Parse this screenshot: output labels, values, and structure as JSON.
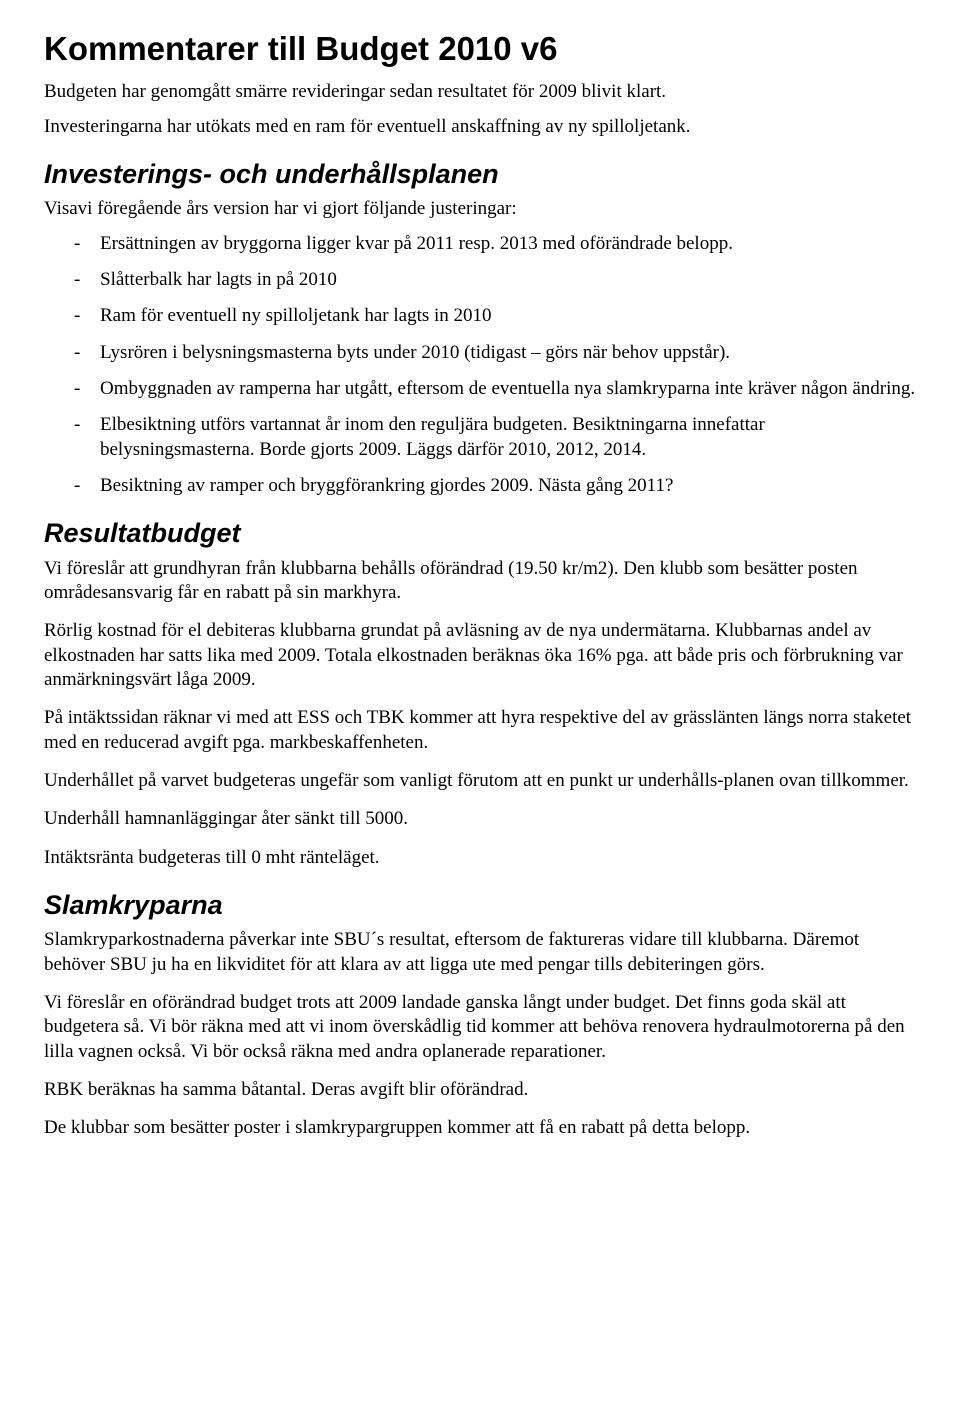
{
  "title": "Kommentarer till Budget 2010 v6",
  "intro": {
    "p1": "Budgeten har genomgått smärre revideringar sedan resultatet för 2009 blivit klart.",
    "p2": "Investeringarna har utökats med en ram för eventuell anskaffning av ny spilloljetank."
  },
  "section1": {
    "heading": "Investerings- och underhållsplanen",
    "lead": "Visavi föregående års version har vi gjort följande justeringar:",
    "items": [
      "Ersättningen av bryggorna ligger kvar på 2011 resp. 2013 med oförändrade belopp.",
      "Slåtterbalk har lagts in på 2010",
      "Ram för eventuell ny spilloljetank har lagts in 2010",
      "Lysrören i belysningsmasterna byts under 2010 (tidigast – görs när behov uppstår).",
      "Ombyggnaden av ramperna har utgått, eftersom de eventuella nya slamkryparna inte kräver någon ändring.",
      "Elbesiktning utförs vartannat år inom den reguljära budgeten. Besiktningarna innefattar belysningsmasterna. Borde gjorts 2009. Läggs därför 2010, 2012, 2014.",
      "Besiktning av ramper och bryggförankring gjordes 2009. Nästa gång 2011?"
    ]
  },
  "section2": {
    "heading": "Resultatbudget",
    "p1": "Vi föreslår att grundhyran från klubbarna behålls oförändrad (19.50 kr/m2). Den klubb som besätter posten områdesansvarig får en rabatt på sin markhyra.",
    "p2": "Rörlig kostnad för el debiteras klubbarna grundat på avläsning av de nya undermätarna. Klubbarnas andel av elkostnaden har satts lika med 2009. Totala elkostnaden beräknas öka 16% pga. att både pris och förbrukning var anmärkningsvärt låga 2009.",
    "p3": "På intäktssidan räknar vi med att ESS och TBK kommer att hyra respektive del av grässlänten längs norra staketet med en reducerad avgift pga. markbeskaffenheten.",
    "p4": "Underhållet på varvet budgeteras ungefär som vanligt förutom att en punkt ur underhålls-planen ovan tillkommer.",
    "p5": "Underhåll hamnanläggingar åter sänkt till 5000.",
    "p6": "Intäktsränta budgeteras till 0 mht ränteläget."
  },
  "section3": {
    "heading": "Slamkryparna",
    "p1": "Slamkryparkostnaderna påverkar inte SBU´s resultat, eftersom de faktureras vidare till klubbarna. Däremot behöver SBU ju ha en likviditet för att klara av att ligga ute med pengar tills debiteringen görs.",
    "p2": "Vi föreslår en oförändrad budget trots att 2009 landade ganska långt under budget. Det finns goda skäl att budgetera så. Vi bör räkna med att vi inom överskådlig tid kommer att behöva renovera hydraulmotorerna på den lilla vagnen också. Vi bör också räkna med andra oplanerade reparationer.",
    "p3": "RBK beräknas ha samma båtantal. Deras avgift blir oförändrad.",
    "p4": "De klubbar som besätter poster i slamkrypargruppen kommer att få en rabatt på detta belopp."
  }
}
